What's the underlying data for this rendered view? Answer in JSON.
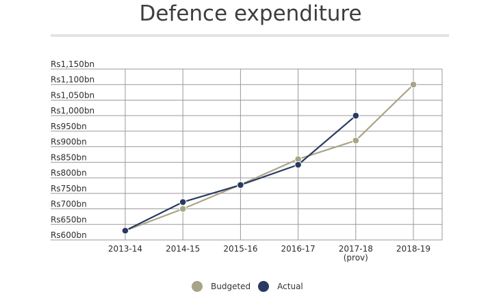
{
  "colors": {
    "budgeted": "#a8a586",
    "actual": "#293a62",
    "grid": "#999999"
  },
  "chart_data": {
    "type": "line",
    "title": "Defence expenditure",
    "xlabel": "",
    "ylabel": "",
    "categories": [
      [
        "2013-14"
      ],
      [
        "2014-15"
      ],
      [
        "2015-16"
      ],
      [
        "2016-17"
      ],
      [
        "2017-18",
        "(prov)"
      ],
      [
        "2018-19"
      ]
    ],
    "yticks": [
      "Rs600bn",
      "Rs650bn",
      "Rs700bn",
      "Rs750bn",
      "Rs800bn",
      "Rs850bn",
      "Rs900bn",
      "Rs950bn",
      "Rs1,000bn",
      "Rs1,050bn",
      "Rs1,100bn",
      "Rs1,150bn"
    ],
    "ylim": [
      600,
      1150
    ],
    "grid": true,
    "legend_position": "bottom",
    "series": [
      {
        "name": "Budgeted",
        "values": [
          630,
          700,
          778,
          860,
          920,
          1100
        ]
      },
      {
        "name": "Actual",
        "values": [
          630,
          722,
          777,
          842,
          1000,
          null
        ]
      }
    ]
  }
}
